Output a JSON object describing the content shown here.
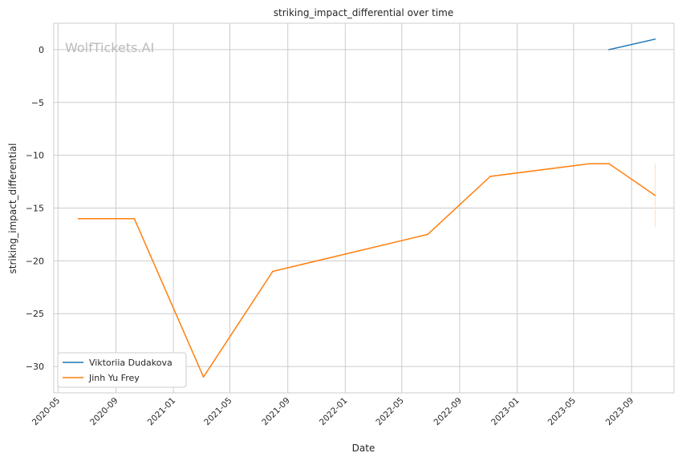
{
  "chart_data": {
    "type": "line",
    "title": "striking_impact_differential over time",
    "xlabel": "Date",
    "ylabel": "striking_impact_differential",
    "watermark": "WolfTickets.AI",
    "x_ticks": [
      "2020-05",
      "2020-09",
      "2021-01",
      "2021-05",
      "2021-09",
      "2022-01",
      "2022-05",
      "2022-09",
      "2023-01",
      "2023-05",
      "2023-09"
    ],
    "y_ticks": [
      "0",
      "−5",
      "−10",
      "−15",
      "−20",
      "−25",
      "−30"
    ],
    "y_tick_values": [
      0,
      -5,
      -10,
      -15,
      -20,
      -25,
      -30
    ],
    "xlim": [
      "2020-04-22",
      "2023-11-30"
    ],
    "ylim": [
      -32.5,
      2.5
    ],
    "grid": true,
    "legend_position": "lower-left",
    "series": [
      {
        "name": "Viktoriia Dudakova",
        "color": "#1f77b4",
        "points": [
          [
            "2023-07-15",
            0
          ],
          [
            "2023-10-21",
            1
          ]
        ]
      },
      {
        "name": "Jinh Yu Frey",
        "color": "#ff7f0e",
        "points": [
          [
            "2020-06-13",
            -16
          ],
          [
            "2020-10-10",
            -16
          ],
          [
            "2021-03-06",
            -31
          ],
          [
            "2021-07-31",
            -21
          ],
          [
            "2022-06-25",
            -17.5
          ],
          [
            "2022-11-05",
            -12
          ],
          [
            "2023-06-03",
            -10.8
          ],
          [
            "2023-07-15",
            -10.8
          ],
          [
            "2023-10-21",
            -13.8
          ]
        ]
      }
    ],
    "error_bar": {
      "series": "Jinh Yu Frey",
      "x": "2023-10-21",
      "y_range": [
        -16.8,
        -10.8
      ],
      "color": "#ffe0c2"
    }
  }
}
